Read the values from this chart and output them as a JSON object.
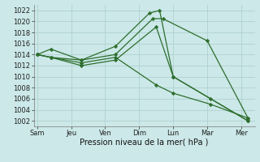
{
  "background_color": "#cce8e8",
  "grid_color": "#aacccc",
  "line_color": "#2d6e2d",
  "marker_color": "#2d6e2d",
  "xlabel": "Pression niveau de la mer( hPa )",
  "ylim": [
    1001,
    1023
  ],
  "yticks": [
    1002,
    1004,
    1006,
    1008,
    1010,
    1012,
    1014,
    1016,
    1018,
    1020,
    1022
  ],
  "xtick_labels": [
    "Sam",
    "Jeu",
    "Ven",
    "Dim",
    "Lun",
    "Mar",
    "Mer"
  ],
  "xtick_positions": [
    0,
    1,
    2,
    3,
    4,
    5,
    6
  ],
  "series": [
    [
      1014.0,
      1013.5,
      1013.0,
      1015.5,
      1021.5,
      1022.0,
      1010.0,
      1002.0
    ],
    [
      1014.0,
      1015.0,
      1013.0,
      1014.0,
      1020.5,
      1020.5,
      1016.5,
      1002.5
    ],
    [
      1014.0,
      1013.5,
      1012.0,
      1013.0,
      1019.0,
      1010.0,
      1006.0,
      1002.0
    ],
    [
      1014.0,
      1013.5,
      1012.5,
      1013.5,
      1008.5,
      1007.0,
      1005.0,
      1002.5
    ]
  ],
  "series_x": [
    [
      0,
      0.4,
      1.3,
      2.3,
      3.3,
      3.6,
      4.0,
      6.2
    ],
    [
      0,
      0.4,
      1.3,
      2.3,
      3.4,
      3.7,
      5.0,
      6.2
    ],
    [
      0,
      0.4,
      1.3,
      2.3,
      3.5,
      4.0,
      5.1,
      6.2
    ],
    [
      0,
      0.4,
      1.3,
      2.3,
      3.5,
      4.0,
      5.1,
      6.2
    ]
  ],
  "xlim": [
    -0.1,
    6.4
  ],
  "xlabel_fontsize": 7,
  "tick_fontsize": 6,
  "linewidth": 0.9,
  "markersize": 2.2
}
